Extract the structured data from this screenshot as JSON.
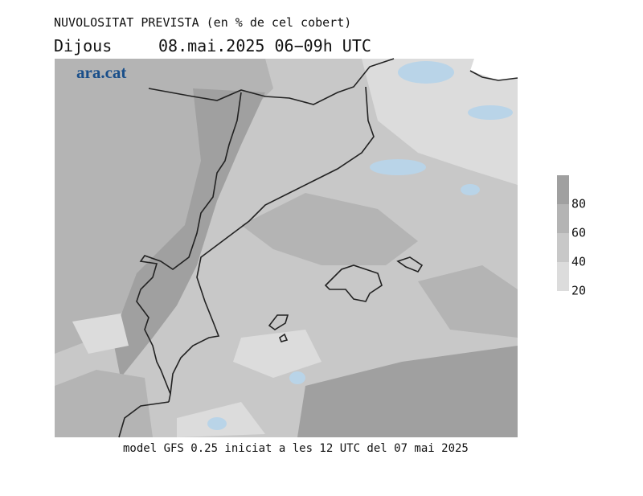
{
  "header": {
    "title": "NUVOLOSITAT PREVISTA (en % de cel cobert)",
    "day": "Dijous",
    "date": "08.mai.2025 06−09h UTC"
  },
  "logo": "ara.cat",
  "footer": "model GFS 0.25 iniciat a les 12 UTC del 07 mai 2025",
  "colorbar": {
    "ticks": [
      20,
      40,
      60,
      80
    ],
    "colors": [
      "#dcdcdc",
      "#c8c8c8",
      "#b4b4b4",
      "#a0a0a0"
    ]
  }
}
